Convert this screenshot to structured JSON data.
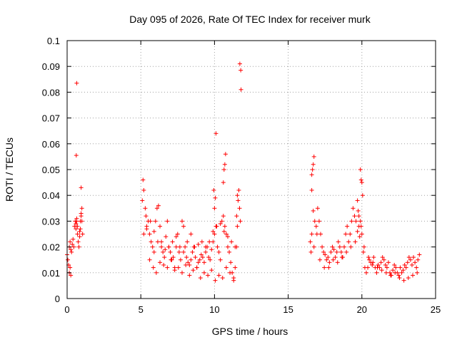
{
  "chart_data": {
    "type": "scatter",
    "title": "Day 095 of 2026, Rate Of TEC Index for receiver murk",
    "xlabel": "GPS time / hours",
    "ylabel": "ROTI / TECUs",
    "xlim": [
      0,
      25
    ],
    "ylim": [
      0,
      0.1
    ],
    "xticks": [
      "0",
      "5",
      "10",
      "15",
      "20",
      "25"
    ],
    "yticks": [
      "0",
      "0.01",
      "0.02",
      "0.03",
      "0.04",
      "0.05",
      "0.06",
      "0.07",
      "0.08",
      "0.09",
      "0.1"
    ],
    "grid": true,
    "marker": "plus",
    "color": "#ff0000",
    "series": [
      {
        "x": [
          0.0,
          0.05,
          0.1,
          0.15,
          0.2,
          0.25,
          0.3,
          0.35,
          0.4,
          0.45,
          0.5,
          0.55,
          0.6,
          0.65,
          0.7,
          0.75,
          0.8,
          0.85,
          0.9,
          0.95,
          1.0,
          1.05,
          0.15,
          0.2,
          0.25,
          0.6,
          0.65,
          0.7,
          0.85,
          0.9,
          0.95,
          1.0,
          0.65,
          0.62,
          0.95,
          5.1,
          5.2,
          5.3,
          5.4,
          5.5,
          5.6,
          5.7,
          5.8,
          5.9,
          6.0,
          6.1,
          6.2,
          6.3,
          6.4,
          6.5,
          6.6,
          6.7,
          6.8,
          6.9,
          7.0,
          7.1,
          7.2,
          7.3,
          7.4,
          7.5,
          7.6,
          7.7,
          7.8,
          7.9,
          8.0,
          8.1,
          8.2,
          8.3,
          8.4,
          8.5,
          8.6,
          8.7,
          8.8,
          8.9,
          9.0,
          9.1,
          9.2,
          9.3,
          9.4,
          9.5,
          9.6,
          9.7,
          9.8,
          9.9,
          10.0,
          10.1,
          10.2,
          10.3,
          10.4,
          10.5,
          10.6,
          10.7,
          10.8,
          10.9,
          11.0,
          11.1,
          11.2,
          11.3,
          11.4,
          11.5,
          5.15,
          5.35,
          5.6,
          5.85,
          6.05,
          6.3,
          6.55,
          6.8,
          7.05,
          7.3,
          7.55,
          7.8,
          8.05,
          8.3,
          8.55,
          8.8,
          9.05,
          9.3,
          9.55,
          9.8,
          10.05,
          10.3,
          10.55,
          10.8,
          11.05,
          11.3,
          5.2,
          5.4,
          5.65,
          5.9,
          6.15,
          6.4,
          6.65,
          6.9,
          7.15,
          7.4,
          7.65,
          7.9,
          8.15,
          8.4,
          8.65,
          8.9,
          9.15,
          9.4,
          9.65,
          9.9,
          10.15,
          10.4,
          10.65,
          10.9,
          11.15,
          11.4,
          10.0,
          10.05,
          9.95,
          10.1,
          10.6,
          10.65,
          10.7,
          10.75,
          11.55,
          11.6,
          11.65,
          11.7,
          11.75,
          11.8,
          11.72,
          11.78,
          11.5,
          11.55,
          16.5,
          16.6,
          16.7,
          16.8,
          16.9,
          17.0,
          17.1,
          17.2,
          17.3,
          17.4,
          17.5,
          17.6,
          17.7,
          17.8,
          17.9,
          18.0,
          18.1,
          18.2,
          18.3,
          18.4,
          18.5,
          18.6,
          18.7,
          18.8,
          18.9,
          19.0,
          19.1,
          19.2,
          19.3,
          19.4,
          19.5,
          19.6,
          19.7,
          19.8,
          19.9,
          20.0,
          20.1,
          20.2,
          20.3,
          20.4,
          20.5,
          20.6,
          20.7,
          20.8,
          20.9,
          21.0,
          21.1,
          21.2,
          21.3,
          21.4,
          21.5,
          21.6,
          21.7,
          21.8,
          21.9,
          22.0,
          22.1,
          22.2,
          22.3,
          22.4,
          22.5,
          22.6,
          22.7,
          22.8,
          22.9,
          23.0,
          23.1,
          23.2,
          23.3,
          23.4,
          23.5,
          23.6,
          23.7,
          23.8,
          23.9,
          16.55,
          16.75,
          16.95,
          17.15,
          17.45,
          17.75,
          18.05,
          18.35,
          18.65,
          18.95,
          19.25,
          19.55,
          19.85,
          20.15,
          20.45,
          20.75,
          21.05,
          21.35,
          21.65,
          21.95,
          22.25,
          22.55,
          22.85,
          23.15,
          23.45,
          23.75,
          16.6,
          16.65,
          16.7,
          16.75,
          16.6,
          19.7,
          19.75,
          19.8,
          19.9,
          19.95,
          20.0,
          20.05,
          19.95
        ],
        "y": [
          0.017,
          0.015,
          0.013,
          0.02,
          0.022,
          0.019,
          0.018,
          0.021,
          0.023,
          0.02,
          0.028,
          0.03,
          0.027,
          0.031,
          0.025,
          0.022,
          0.02,
          0.026,
          0.03,
          0.033,
          0.035,
          0.025,
          0.01,
          0.012,
          0.009,
          0.029,
          0.03,
          0.028,
          0.024,
          0.027,
          0.032,
          0.03,
          0.0835,
          0.0555,
          0.043,
          0.038,
          0.042,
          0.035,
          0.028,
          0.03,
          0.025,
          0.022,
          0.02,
          0.018,
          0.03,
          0.035,
          0.036,
          0.028,
          0.022,
          0.018,
          0.016,
          0.024,
          0.03,
          0.02,
          0.018,
          0.015,
          0.016,
          0.012,
          0.02,
          0.025,
          0.018,
          0.015,
          0.03,
          0.028,
          0.02,
          0.016,
          0.014,
          0.013,
          0.015,
          0.018,
          0.02,
          0.016,
          0.012,
          0.014,
          0.015,
          0.017,
          0.016,
          0.014,
          0.018,
          0.02,
          0.016,
          0.015,
          0.019,
          0.022,
          0.025,
          0.028,
          0.02,
          0.018,
          0.015,
          0.03,
          0.032,
          0.028,
          0.025,
          0.02,
          0.018,
          0.014,
          0.01,
          0.008,
          0.012,
          0.02,
          0.046,
          0.032,
          0.015,
          0.012,
          0.01,
          0.014,
          0.013,
          0.012,
          0.015,
          0.011,
          0.012,
          0.01,
          0.013,
          0.009,
          0.011,
          0.012,
          0.008,
          0.01,
          0.009,
          0.011,
          0.007,
          0.009,
          0.008,
          0.012,
          0.01,
          0.007,
          0.025,
          0.027,
          0.03,
          0.026,
          0.022,
          0.02,
          0.019,
          0.02,
          0.022,
          0.024,
          0.02,
          0.018,
          0.022,
          0.025,
          0.02,
          0.021,
          0.022,
          0.02,
          0.022,
          0.026,
          0.028,
          0.029,
          0.026,
          0.024,
          0.022,
          0.02,
          0.035,
          0.039,
          0.042,
          0.064,
          0.045,
          0.05,
          0.052,
          0.056,
          0.04,
          0.038,
          0.042,
          0.035,
          0.03,
          0.081,
          0.091,
          0.0885,
          0.032,
          0.028,
          0.022,
          0.025,
          0.034,
          0.03,
          0.028,
          0.035,
          0.03,
          0.025,
          0.02,
          0.018,
          0.017,
          0.015,
          0.016,
          0.014,
          0.018,
          0.02,
          0.019,
          0.016,
          0.018,
          0.022,
          0.02,
          0.018,
          0.016,
          0.02,
          0.025,
          0.028,
          0.022,
          0.025,
          0.03,
          0.035,
          0.032,
          0.03,
          0.026,
          0.028,
          0.03,
          0.025,
          0.018,
          0.012,
          0.01,
          0.012,
          0.015,
          0.014,
          0.013,
          0.016,
          0.012,
          0.01,
          0.013,
          0.012,
          0.014,
          0.016,
          0.015,
          0.013,
          0.012,
          0.014,
          0.01,
          0.009,
          0.011,
          0.013,
          0.012,
          0.01,
          0.009,
          0.012,
          0.01,
          0.011,
          0.013,
          0.012,
          0.014,
          0.016,
          0.015,
          0.013,
          0.016,
          0.014,
          0.012,
          0.015,
          0.017,
          0.018,
          0.02,
          0.025,
          0.015,
          0.012,
          0.012,
          0.015,
          0.014,
          0.016,
          0.018,
          0.02,
          0.022,
          0.024,
          0.02,
          0.016,
          0.014,
          0.012,
          0.011,
          0.01,
          0.009,
          0.01,
          0.008,
          0.007,
          0.008,
          0.009,
          0.01,
          0.042,
          0.05,
          0.052,
          0.055,
          0.048,
          0.038,
          0.034,
          0.032,
          0.05,
          0.046,
          0.045,
          0.04,
          0.028
        ]
      }
    ]
  }
}
